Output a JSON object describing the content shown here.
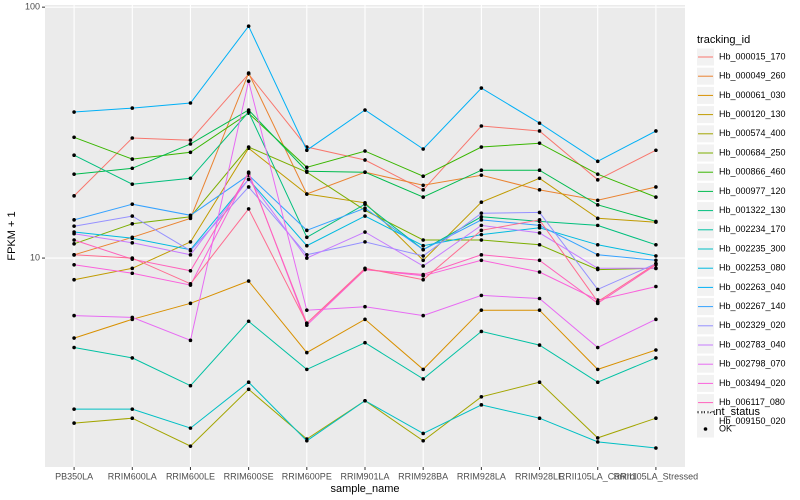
{
  "chart_data": {
    "type": "line",
    "x_label": "sample_name",
    "y_label": "FPKM + 1",
    "log_scale": true,
    "grid": true,
    "legend_position": "right",
    "legend_title": "tracking_id",
    "point_color": "#000000",
    "shape_legend": {
      "title": "quant_status",
      "entries": [
        "OK"
      ]
    },
    "ylim": [
      1.47,
      102
    ],
    "yticks": [
      10,
      100
    ],
    "categories": [
      "PB350LA",
      "RRIM600LA",
      "RRIM600LE",
      "RRIM600SE",
      "RRIM600PE",
      "RRIM901LA",
      "RRIM928BA",
      "RRIM928LA",
      "RRIM928LE",
      "RRII105LA_Control",
      "RRII105LA_Stressed"
    ],
    "series": [
      {
        "name": "Hb_000015_170",
        "color": "#F8766D",
        "values": [
          17.7,
          30.1,
          29.5,
          54.1,
          27.7,
          24.6,
          18.7,
          33.6,
          32.1,
          20.5,
          26.9
        ]
      },
      {
        "name": "Hb_000049_260",
        "color": "#EA8331",
        "values": [
          10.3,
          12.1,
          14.4,
          54.6,
          18.0,
          22.0,
          19.5,
          21.4,
          18.7,
          17.0,
          19.2
        ]
      },
      {
        "name": "Hb_000061_030",
        "color": "#D89000",
        "values": [
          4.8,
          5.7,
          6.6,
          8.1,
          4.2,
          5.7,
          3.6,
          6.2,
          6.2,
          3.6,
          4.3
        ]
      },
      {
        "name": "Hb_000120_130",
        "color": "#C09B00",
        "values": [
          8.2,
          9.1,
          11.6,
          27.4,
          18.0,
          16.6,
          9.8,
          16.7,
          20.8,
          14.4,
          13.9
        ]
      },
      {
        "name": "Hb_000574_400",
        "color": "#A3A500",
        "values": [
          2.2,
          2.3,
          1.78,
          3.0,
          1.9,
          2.7,
          1.87,
          2.8,
          3.2,
          1.92,
          2.3
        ]
      },
      {
        "name": "Hb_000684_250",
        "color": "#7CAE00",
        "values": [
          11.4,
          13.7,
          14.6,
          27.7,
          22.0,
          15.5,
          11.8,
          11.8,
          11.3,
          9.0,
          9.1
        ]
      },
      {
        "name": "Hb_000866_460",
        "color": "#39B600",
        "values": [
          30.3,
          24.8,
          26.4,
          37.8,
          23.0,
          26.7,
          21.2,
          27.7,
          28.7,
          21.6,
          17.5
        ]
      },
      {
        "name": "Hb_000977_120",
        "color": "#00BB4E",
        "values": [
          21.6,
          22.8,
          28.5,
          38.9,
          22.2,
          22.0,
          17.5,
          22.4,
          22.4,
          16.3,
          14.0
        ]
      },
      {
        "name": "Hb_001322_130",
        "color": "#00BF7D",
        "values": [
          25.7,
          19.7,
          20.8,
          38.2,
          12.1,
          16.4,
          10.8,
          14.6,
          14.0,
          13.5,
          11.3
        ]
      },
      {
        "name": "Hb_002234_170",
        "color": "#00C1A3",
        "values": [
          4.4,
          4.0,
          3.1,
          5.6,
          3.6,
          4.6,
          3.3,
          5.1,
          4.5,
          3.2,
          4.0
        ]
      },
      {
        "name": "Hb_002235_300",
        "color": "#00BFC4",
        "values": [
          2.5,
          2.5,
          2.1,
          3.2,
          1.87,
          2.7,
          2.0,
          2.6,
          2.3,
          1.85,
          1.75
        ]
      },
      {
        "name": "Hb_002253_080",
        "color": "#00BAE0",
        "values": [
          12.7,
          12.0,
          10.8,
          20.6,
          11.2,
          14.7,
          11.2,
          12.4,
          13.2,
          11.3,
          10.2
        ]
      },
      {
        "name": "Hb_002263_040",
        "color": "#00B0F6",
        "values": [
          38.2,
          39.6,
          41.5,
          84.0,
          26.9,
          38.9,
          27.2,
          47.6,
          34.5,
          24.3,
          32.1
        ]
      },
      {
        "name": "Hb_002267_140",
        "color": "#35A2FF",
        "values": [
          14.2,
          16.4,
          14.8,
          21.4,
          12.9,
          15.8,
          10.8,
          14.2,
          13.5,
          10.3,
          9.8
        ]
      },
      {
        "name": "Hb_002329_020",
        "color": "#9590FF",
        "values": [
          13.4,
          14.7,
          10.7,
          19.2,
          10.3,
          11.6,
          10.2,
          15.1,
          15.2,
          7.5,
          9.5
        ]
      },
      {
        "name": "Hb_002783_040",
        "color": "#C77CFF",
        "values": [
          12.5,
          11.5,
          10.3,
          20.6,
          10.0,
          12.7,
          9.3,
          13.5,
          12.6,
          9.1,
          9.1
        ]
      },
      {
        "name": "Hb_002798_070",
        "color": "#E76BF3",
        "values": [
          5.9,
          5.8,
          4.7,
          50.7,
          6.2,
          6.4,
          5.9,
          7.1,
          6.9,
          4.4,
          5.7
        ]
      },
      {
        "name": "Hb_003494_020",
        "color": "#FA62DB",
        "values": [
          9.4,
          8.7,
          7.8,
          22.0,
          5.4,
          9.0,
          8.5,
          9.8,
          8.8,
          6.8,
          7.7
        ]
      },
      {
        "name": "Hb_006117_080",
        "color": "#FF62BC",
        "values": [
          11.8,
          9.9,
          8.9,
          21.8,
          5.5,
          9.0,
          8.6,
          10.3,
          9.8,
          6.6,
          9.4
        ]
      },
      {
        "name": "Hb_009150_020",
        "color": "#FF6C91",
        "values": [
          10.3,
          10.0,
          7.9,
          15.7,
          5.5,
          9.1,
          8.2,
          12.9,
          14.2,
          6.7,
          9.5
        ]
      }
    ]
  }
}
